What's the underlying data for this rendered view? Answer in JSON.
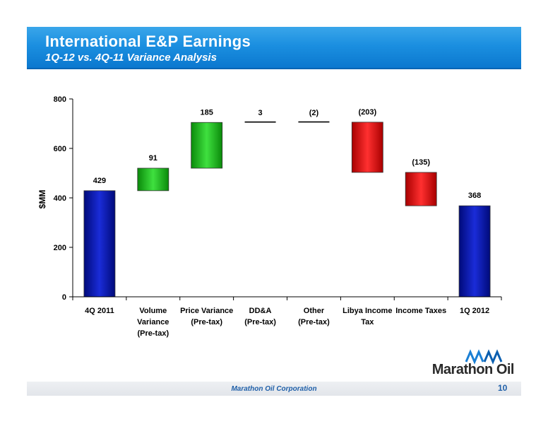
{
  "header": {
    "title": "International E&P Earnings",
    "subtitle": "1Q-12 vs. 4Q-11 Variance Analysis"
  },
  "chart_data": {
    "type": "bar",
    "subtype": "waterfall",
    "ylabel": "$MM",
    "ylim": [
      0,
      800
    ],
    "yticks": [
      "0",
      "200",
      "400",
      "600",
      "800"
    ],
    "categories": [
      {
        "line1": "4Q 2011",
        "line2": "",
        "line3": ""
      },
      {
        "line1": "Volume",
        "line2": "Variance",
        "line3": "(Pre-tax)"
      },
      {
        "line1": "Price Variance",
        "line2": "(Pre-tax)",
        "line3": ""
      },
      {
        "line1": "DD&A",
        "line2": "(Pre-tax)",
        "line3": ""
      },
      {
        "line1": "Other",
        "line2": "(Pre-tax)",
        "line3": ""
      },
      {
        "line1": "Libya Income",
        "line2": "Tax",
        "line3": ""
      },
      {
        "line1": "Income Taxes",
        "line2": "",
        "line3": ""
      },
      {
        "line1": "1Q 2012",
        "line2": "",
        "line3": ""
      }
    ],
    "bars": [
      {
        "kind": "total",
        "start": 0,
        "end": 429,
        "label": "429",
        "color": "blue"
      },
      {
        "kind": "increase",
        "start": 429,
        "end": 520,
        "label": "91",
        "color": "green"
      },
      {
        "kind": "increase",
        "start": 520,
        "end": 705,
        "label": "185",
        "color": "green"
      },
      {
        "kind": "increase",
        "start": 705,
        "end": 708,
        "label": "3",
        "color": "line"
      },
      {
        "kind": "decrease",
        "start": 708,
        "end": 706,
        "label": "(2)",
        "color": "line"
      },
      {
        "kind": "decrease",
        "start": 706,
        "end": 503,
        "label": "(203)",
        "color": "red"
      },
      {
        "kind": "decrease",
        "start": 503,
        "end": 368,
        "label": "(135)",
        "color": "red"
      },
      {
        "kind": "total",
        "start": 0,
        "end": 368,
        "label": "368",
        "color": "blue"
      }
    ],
    "grid": false,
    "legend": "none",
    "colors": {
      "blue": "#0a1aa8",
      "green": "#1ec21e",
      "red": "#e81818",
      "line": "#000000"
    }
  },
  "footer": {
    "company": "Marathon Oil Corporation",
    "page": "10",
    "logo_text": "Marathon Oil"
  }
}
